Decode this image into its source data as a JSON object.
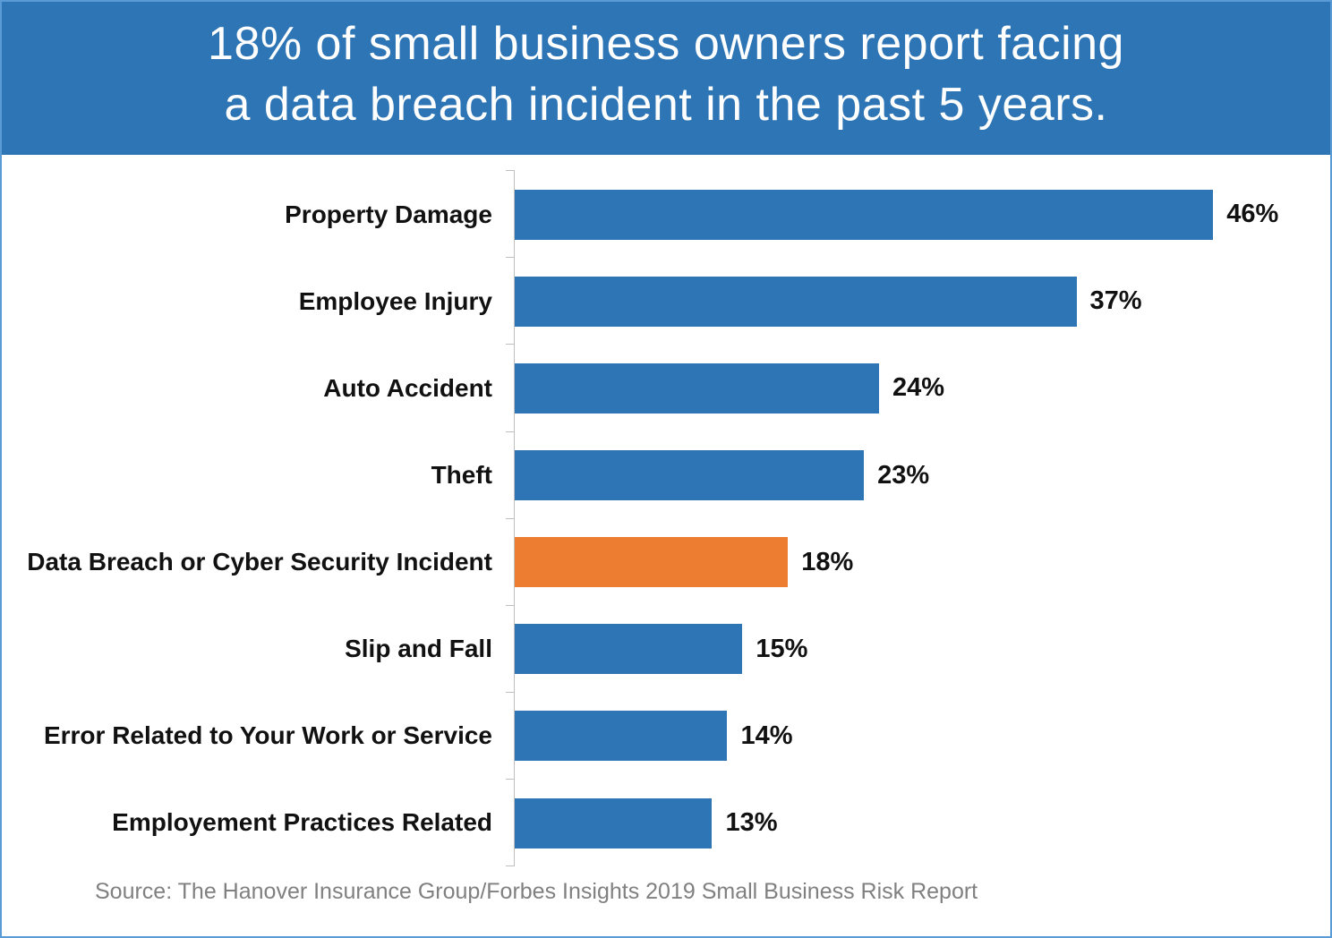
{
  "header": {
    "line1": "18% of small business owners report facing",
    "line2": "a data breach incident in the past 5 years."
  },
  "source": "Source: The Hanover Insurance Group/Forbes Insights 2019 Small Business Risk Report",
  "colors": {
    "header_bg": "#2E75B6",
    "bar_blue": "#2E75B6",
    "bar_orange": "#ED7D31",
    "page_border": "#5B9BD5",
    "axis_gray": "#BFBFBF",
    "source_gray": "#808080"
  },
  "chart_data": {
    "type": "bar",
    "orientation": "horizontal",
    "title": "18% of small business owners report facing a data breach incident in the past 5 years.",
    "categories": [
      "Property Damage",
      "Employee Injury",
      "Auto Accident",
      "Theft",
      "Data Breach or Cyber Security Incident",
      "Slip and Fall",
      "Error Related to Your Work or Service",
      "Employement Practices Related"
    ],
    "values": [
      46,
      37,
      24,
      23,
      18,
      15,
      14,
      13
    ],
    "value_labels": [
      "46%",
      "37%",
      "24%",
      "23%",
      "18%",
      "15%",
      "14%",
      "13%"
    ],
    "highlight_category": "Data Breach or Cyber Security Incident",
    "highlight_index": 4,
    "axis_max": 51,
    "xlabel": "",
    "ylabel": "",
    "grid": false,
    "legend": false
  }
}
